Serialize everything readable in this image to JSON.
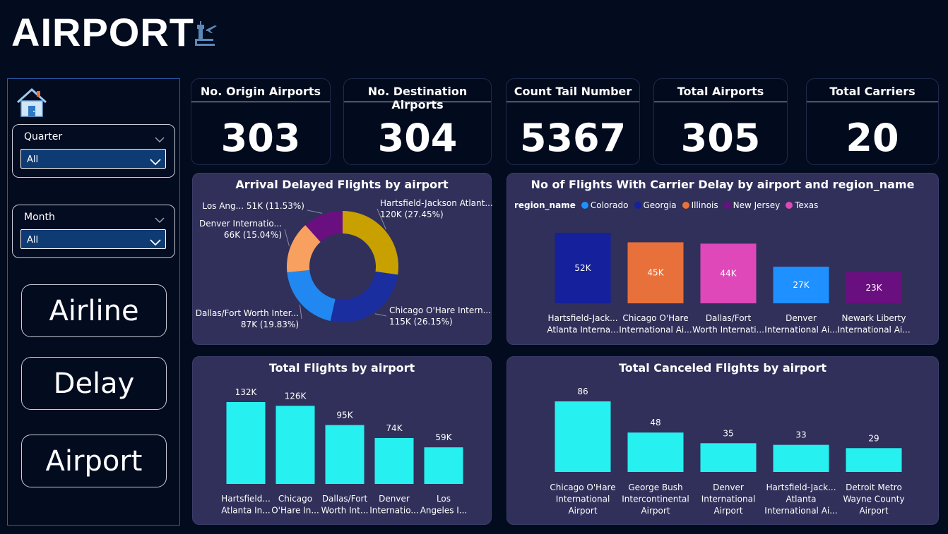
{
  "page": {
    "title": "AIRPORT"
  },
  "icons": {
    "title": "airport-tower-icon",
    "home": "home-icon"
  },
  "sidebar": {
    "quarter": {
      "label": "Quarter",
      "value": "All"
    },
    "month": {
      "label": "Month",
      "value": "All"
    },
    "nav": [
      {
        "label": "Airline"
      },
      {
        "label": "Delay"
      },
      {
        "label": "Airport"
      }
    ]
  },
  "cards": [
    {
      "label": "No. Origin Airports",
      "value": "303"
    },
    {
      "label": "No. Destination Airports",
      "value": "304"
    },
    {
      "label": "Count Tail Number",
      "value": "5367"
    },
    {
      "label": "Total Airports",
      "value": "305"
    },
    {
      "label": "Total Carriers",
      "value": "20"
    }
  ],
  "colors": {
    "panel": "#30305a",
    "bar_cyan": "#27f0f0",
    "colorado": "#1e90ff",
    "georgia": "#14209c",
    "illinois": "#e8703a",
    "new_jersey": "#6a0f80",
    "texas": "#de48b8",
    "hartsfield_slice": "#c8a000",
    "chicago_slice": "#1a2ea0",
    "dallas_slice": "#2088f0",
    "denver_slice": "#f8a060",
    "la_slice": "#6a0f80"
  },
  "chart_data": [
    {
      "type": "pie",
      "title": "Arrival Delayed Flights by airport",
      "slices": [
        {
          "name": "Hartsfield-Jackson Atlant...",
          "value": 120,
          "label": "120K (27.45%)",
          "color": "#c8a000"
        },
        {
          "name": "Chicago O'Hare Intern...",
          "value": 115,
          "label": "115K (26.15%)",
          "color": "#1a2ea0"
        },
        {
          "name": "Dallas/Fort Worth Inter...",
          "value": 87,
          "label": "87K (19.83%)",
          "color": "#2088f0"
        },
        {
          "name": "Denver Internatio...",
          "value": 66,
          "label": "66K (15.04%)",
          "color": "#f8a060"
        },
        {
          "name": "Los Ang...",
          "value": 51,
          "label": "51K (11.53%)",
          "color": "#6a0f80"
        }
      ]
    },
    {
      "type": "bar",
      "title": "No of Flights With Carrier Delay by airport and region_name",
      "legend_title": "region_name",
      "legend": [
        {
          "name": "Colorado",
          "color": "#1e90ff"
        },
        {
          "name": "Georgia",
          "color": "#14209c"
        },
        {
          "name": "Illinois",
          "color": "#e8703a"
        },
        {
          "name": "New Jersey",
          "color": "#6a0f80"
        },
        {
          "name": "Texas",
          "color": "#de48b8"
        }
      ],
      "categories": [
        [
          "Hartsfield-Jack...",
          "Atlanta Interna..."
        ],
        [
          "Chicago O'Hare",
          "International Ai..."
        ],
        [
          "Dallas/Fort",
          "Worth Internati..."
        ],
        [
          "Denver",
          "International Ai..."
        ],
        [
          "Newark Liberty",
          "International Ai..."
        ]
      ],
      "values": [
        52,
        45,
        44,
        27,
        23
      ],
      "labels": [
        "52K",
        "45K",
        "44K",
        "27K",
        "23K"
      ],
      "colors": [
        "#14209c",
        "#e8703a",
        "#de48b8",
        "#1e90ff",
        "#6a0f80"
      ],
      "ylim": [
        0,
        52
      ]
    },
    {
      "type": "bar",
      "title": "Total Flights by airport",
      "categories": [
        [
          "Hartsfield...",
          "Atlanta In..."
        ],
        [
          "Chicago",
          "O'Hare In..."
        ],
        [
          "Dallas/Fort",
          "Worth Int..."
        ],
        [
          "Denver",
          "Internatio..."
        ],
        [
          "Los",
          "Angeles I..."
        ]
      ],
      "values": [
        132,
        126,
        95,
        74,
        59
      ],
      "labels": [
        "132K",
        "126K",
        "95K",
        "74K",
        "59K"
      ],
      "ylim": [
        0,
        132
      ]
    },
    {
      "type": "bar",
      "title": "Total Canceled Flights by airport",
      "categories": [
        [
          "Chicago O'Hare",
          "International",
          "Airport"
        ],
        [
          "George Bush",
          "Intercontinental",
          "Airport"
        ],
        [
          "Denver",
          "International",
          "Airport"
        ],
        [
          "Hartsfield-Jack...",
          "Atlanta",
          "International Ai..."
        ],
        [
          "Detroit Metro",
          "Wayne County",
          "Airport"
        ]
      ],
      "values": [
        86,
        48,
        35,
        33,
        29
      ],
      "labels": [
        "86",
        "48",
        "35",
        "33",
        "29"
      ],
      "ylim": [
        0,
        86
      ]
    }
  ]
}
